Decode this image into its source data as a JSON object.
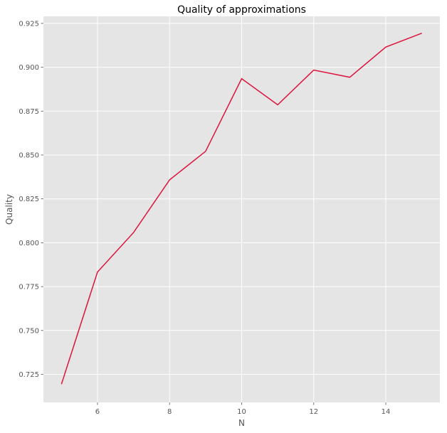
{
  "chart_data": {
    "type": "line",
    "title": "Quality of approximations",
    "xlabel": "N",
    "ylabel": "Quality",
    "xlim": [
      4.5,
      15.5
    ],
    "ylim": [
      0.709,
      0.929
    ],
    "x_ticks": [
      6,
      8,
      10,
      12,
      14
    ],
    "y_ticks": [
      0.725,
      0.75,
      0.775,
      0.8,
      0.825,
      0.85,
      0.875,
      0.9,
      0.925
    ],
    "x_tick_labels": [
      "6",
      "8",
      "10",
      "12",
      "14"
    ],
    "y_tick_labels": [
      "0.725",
      "0.750",
      "0.775",
      "0.800",
      "0.825",
      "0.850",
      "0.875",
      "0.900",
      "0.925"
    ],
    "grid": true,
    "colors": {
      "background": "#e5e5e5",
      "grid": "#ffffff",
      "line": "#dc143c"
    },
    "series": [
      {
        "x": [
          5,
          6,
          7,
          8,
          9,
          10,
          11,
          12,
          13,
          14,
          15
        ],
        "values": [
          0.7194,
          0.7833,
          0.8058,
          0.8358,
          0.8521,
          0.8935,
          0.8786,
          0.8984,
          0.8943,
          0.9115,
          0.9194
        ]
      }
    ]
  }
}
